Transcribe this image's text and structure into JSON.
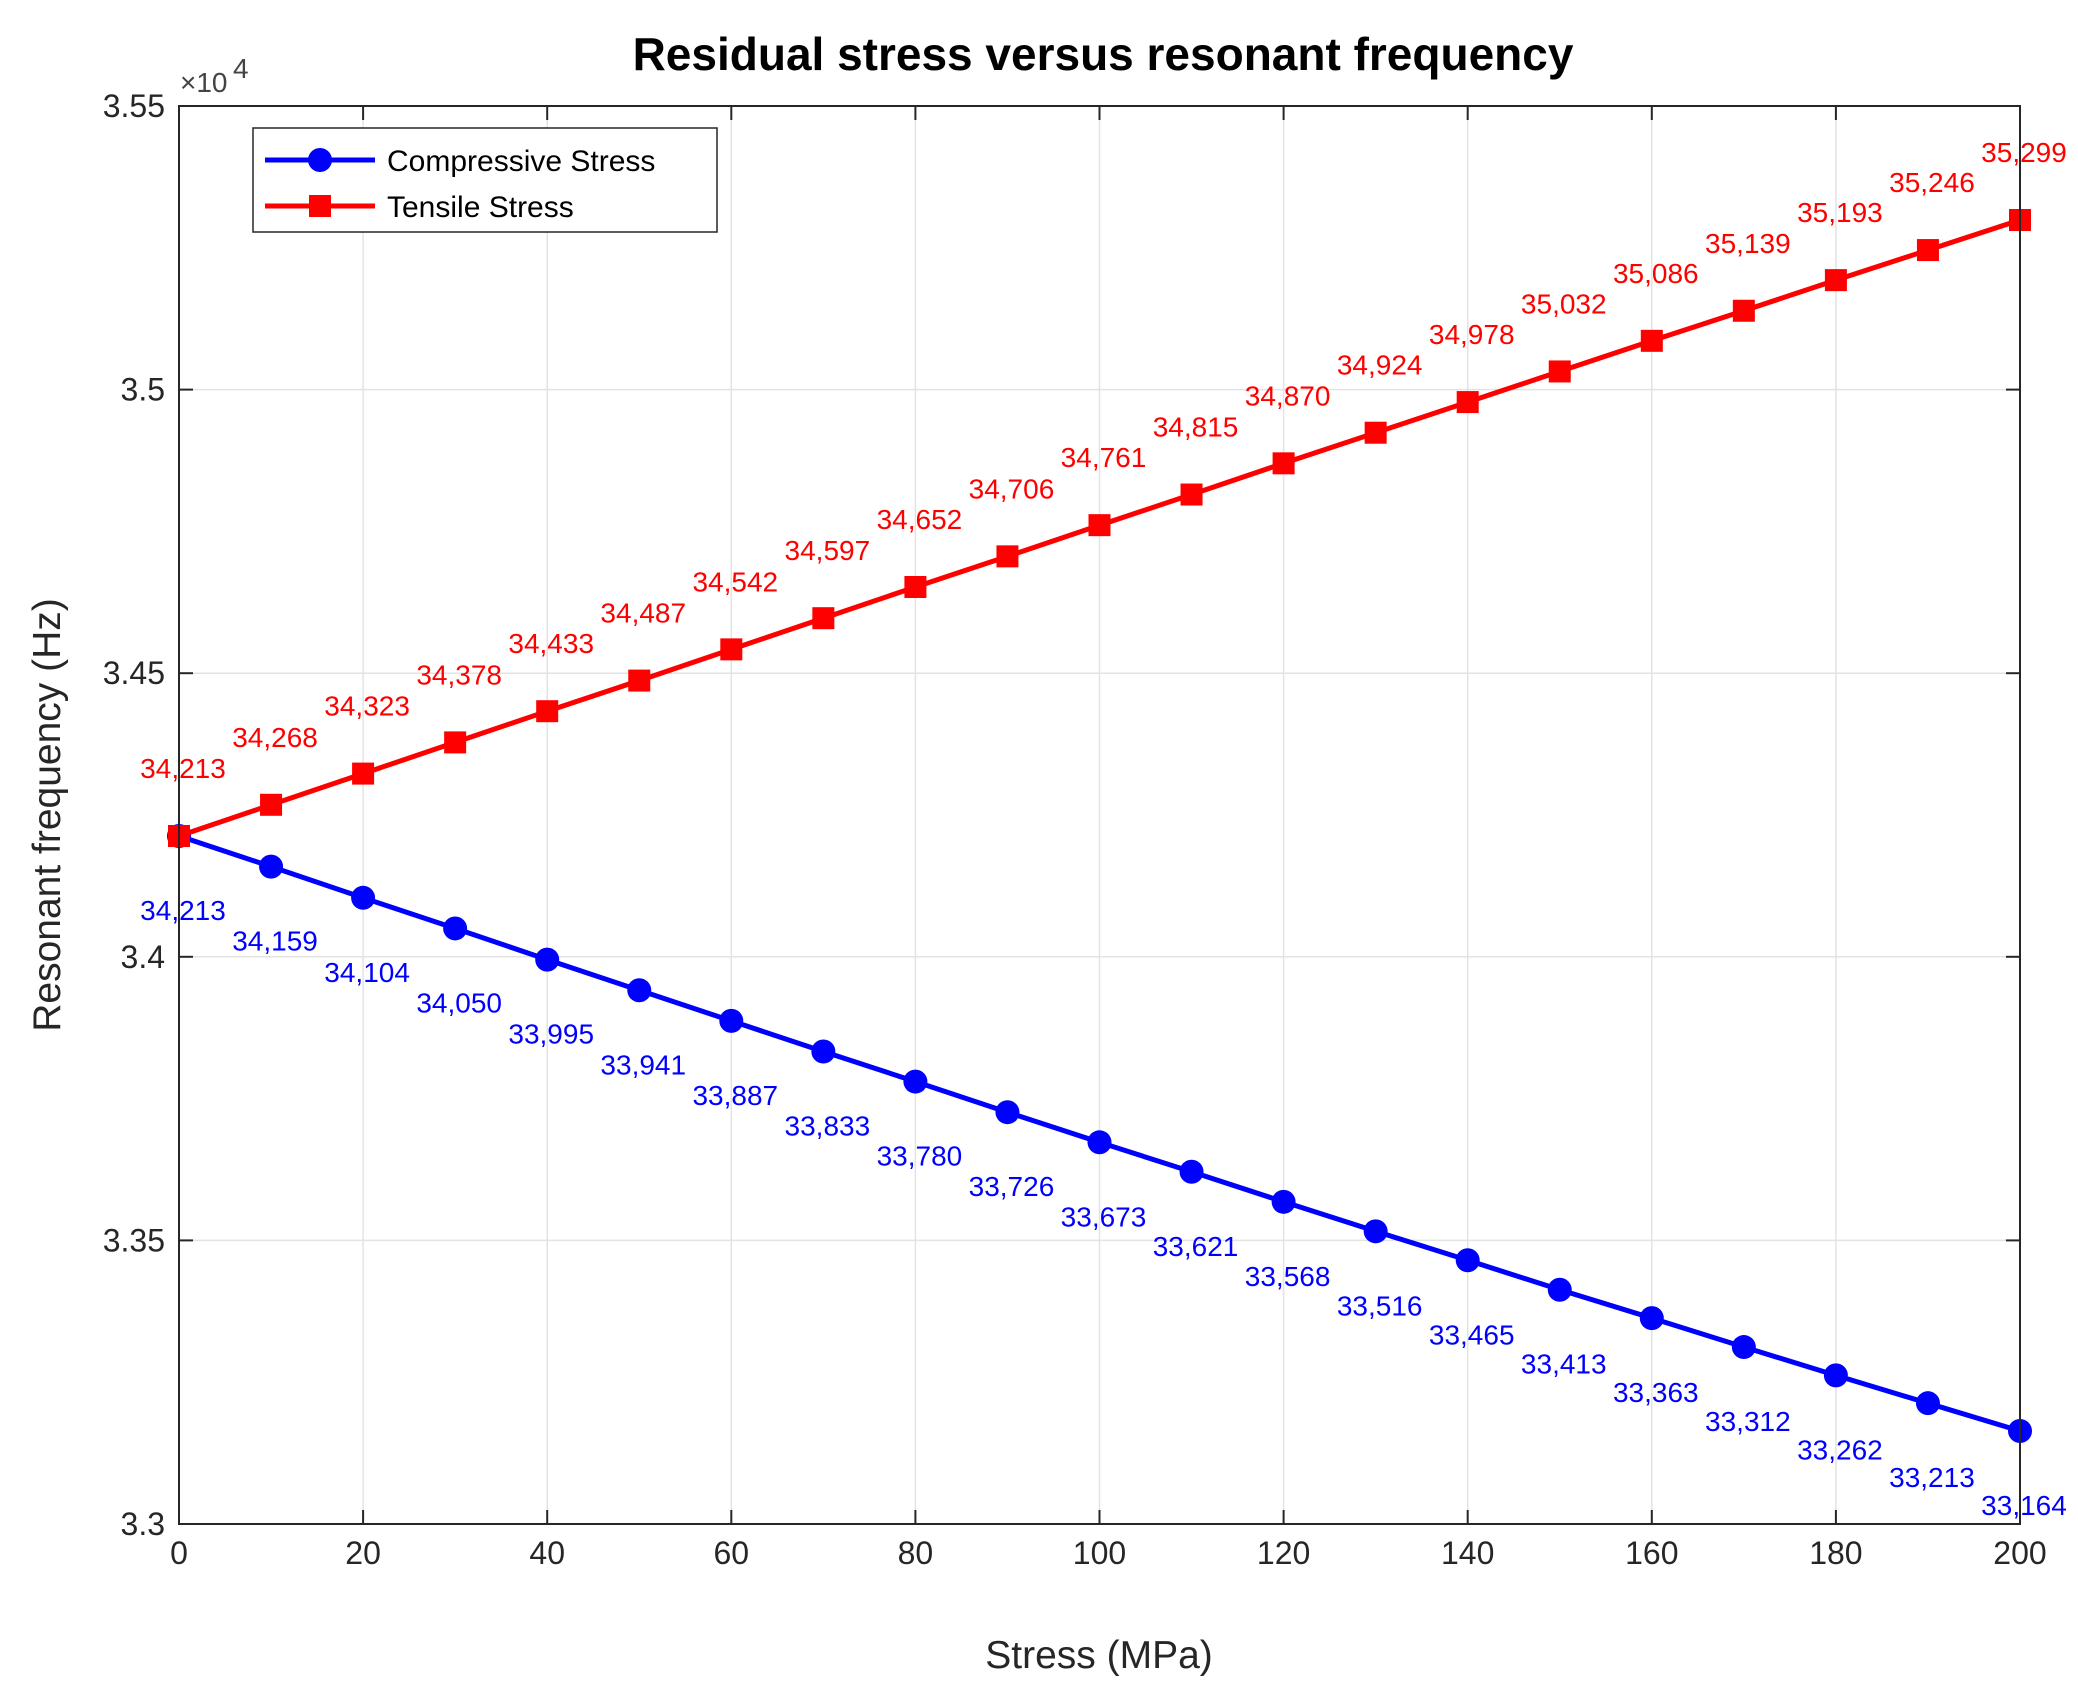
{
  "chart_data": {
    "type": "line",
    "title": "Residual stress versus resonant frequency",
    "xlabel": "Stress (MPa)",
    "ylabel": "Resonant frequency (Hz)",
    "y_exponent_label": "×10",
    "y_exponent_power": "4",
    "xlim": [
      0,
      200
    ],
    "ylim": [
      33000,
      35500
    ],
    "x_ticks": [
      0,
      20,
      40,
      60,
      80,
      100,
      120,
      140,
      160,
      180,
      200
    ],
    "x_tick_labels": [
      "0",
      "20",
      "40",
      "60",
      "80",
      "100",
      "120",
      "140",
      "160",
      "180",
      "200"
    ],
    "y_ticks": [
      33000,
      33500,
      34000,
      34500,
      35000,
      35500
    ],
    "y_tick_labels": [
      "3.3",
      "3.35",
      "3.4",
      "3.45",
      "3.5",
      "3.55"
    ],
    "grid": true,
    "legend_position": "top-left",
    "x": [
      0,
      10,
      20,
      30,
      40,
      50,
      60,
      70,
      80,
      90,
      100,
      110,
      120,
      130,
      140,
      150,
      160,
      170,
      180,
      190,
      200
    ],
    "series": [
      {
        "name": "Compressive Stress",
        "color": "#0000ff",
        "marker": "circle",
        "values": [
          34213,
          34159,
          34104,
          34050,
          33995,
          33941,
          33887,
          33833,
          33780,
          33726,
          33673,
          33621,
          33568,
          33516,
          33465,
          33413,
          33363,
          33312,
          33262,
          33213,
          33164
        ],
        "data_labels": [
          "34,213",
          "34,159",
          "34,104",
          "34,050",
          "33,995",
          "33,941",
          "33,887",
          "33,833",
          "33,780",
          "33,726",
          "33,673",
          "33,621",
          "33,568",
          "33,516",
          "33,465",
          "33,413",
          "33,363",
          "33,312",
          "33,262",
          "33,213",
          "33,164"
        ]
      },
      {
        "name": "Tensile Stress",
        "color": "#ff0000",
        "marker": "square",
        "values": [
          34213,
          34268,
          34323,
          34378,
          34433,
          34487,
          34542,
          34597,
          34652,
          34706,
          34761,
          34815,
          34870,
          34924,
          34978,
          35032,
          35086,
          35139,
          35193,
          35246,
          35299
        ],
        "data_labels": [
          "34,213",
          "34,268",
          "34,323",
          "34,378",
          "34,433",
          "34,487",
          "34,542",
          "34,597",
          "34,652",
          "34,706",
          "34,761",
          "34,815",
          "34,870",
          "34,924",
          "34,978",
          "35,032",
          "35,086",
          "35,139",
          "35,193",
          "35,246",
          "35,299"
        ]
      }
    ]
  }
}
